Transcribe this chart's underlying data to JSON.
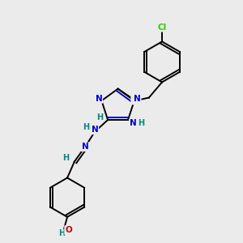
{
  "background_color": "#ebebeb",
  "atom_colors": {
    "C": "#000000",
    "N": "#0000cc",
    "S": "#ccaa00",
    "O": "#cc0000",
    "H": "#008888",
    "Cl": "#33cc00"
  },
  "bond_lw": 1.4,
  "font_size": 7.5,
  "figsize": [
    3.0,
    3.0
  ],
  "dpi": 100
}
